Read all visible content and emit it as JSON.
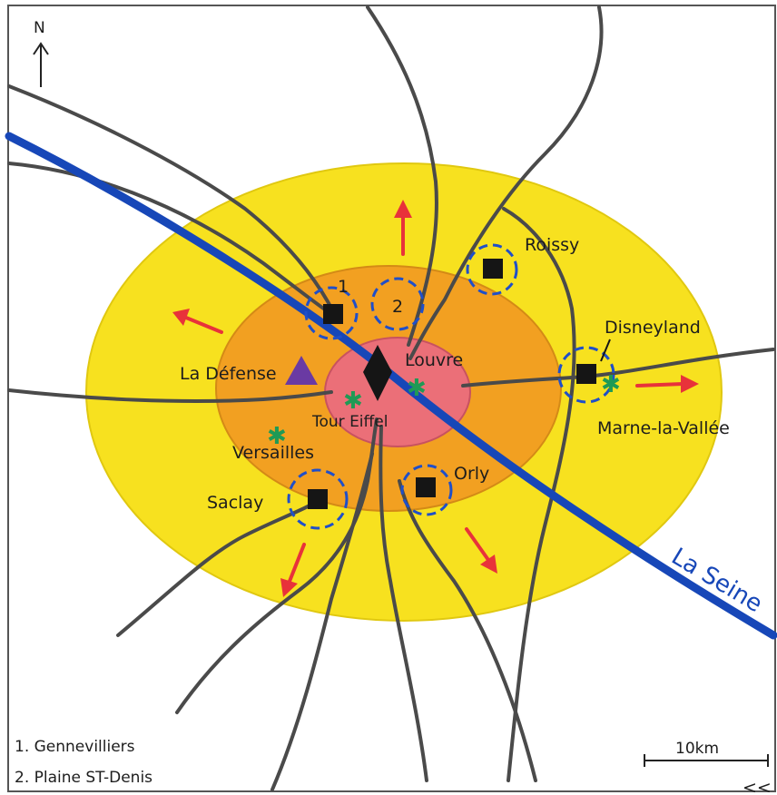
{
  "map": {
    "north_label": "N",
    "river_label": "La Seine",
    "scale_label": "10km",
    "corner_mark": "<<"
  },
  "places": {
    "roissy": "Roissy",
    "disneyland": "Disneyland",
    "marne_la_vallee": "Marne-la-Vallée",
    "louvre": "Louvre",
    "tour_eiffel": "Tour Eiffel",
    "la_defense": "La Défense",
    "versailles": "Versailles",
    "saclay": "Saclay",
    "orly": "Orly",
    "marker_1": "1",
    "marker_2": "2"
  },
  "legend": [
    "1. Gennevilliers",
    "2. Plaine ST-Denis"
  ],
  "colors": {
    "outer_zone": "#f7e11f",
    "middle_zone": "#f2a021",
    "center_zone": "#eb6f78",
    "river": "#1747b8",
    "roads": "#4a4a4a",
    "arrows": "#e8323a",
    "halo": "#1f4fc9",
    "pole_marker": "#151515",
    "defense_triangle": "#6a3aa3",
    "sites": "#1f9a55"
  }
}
